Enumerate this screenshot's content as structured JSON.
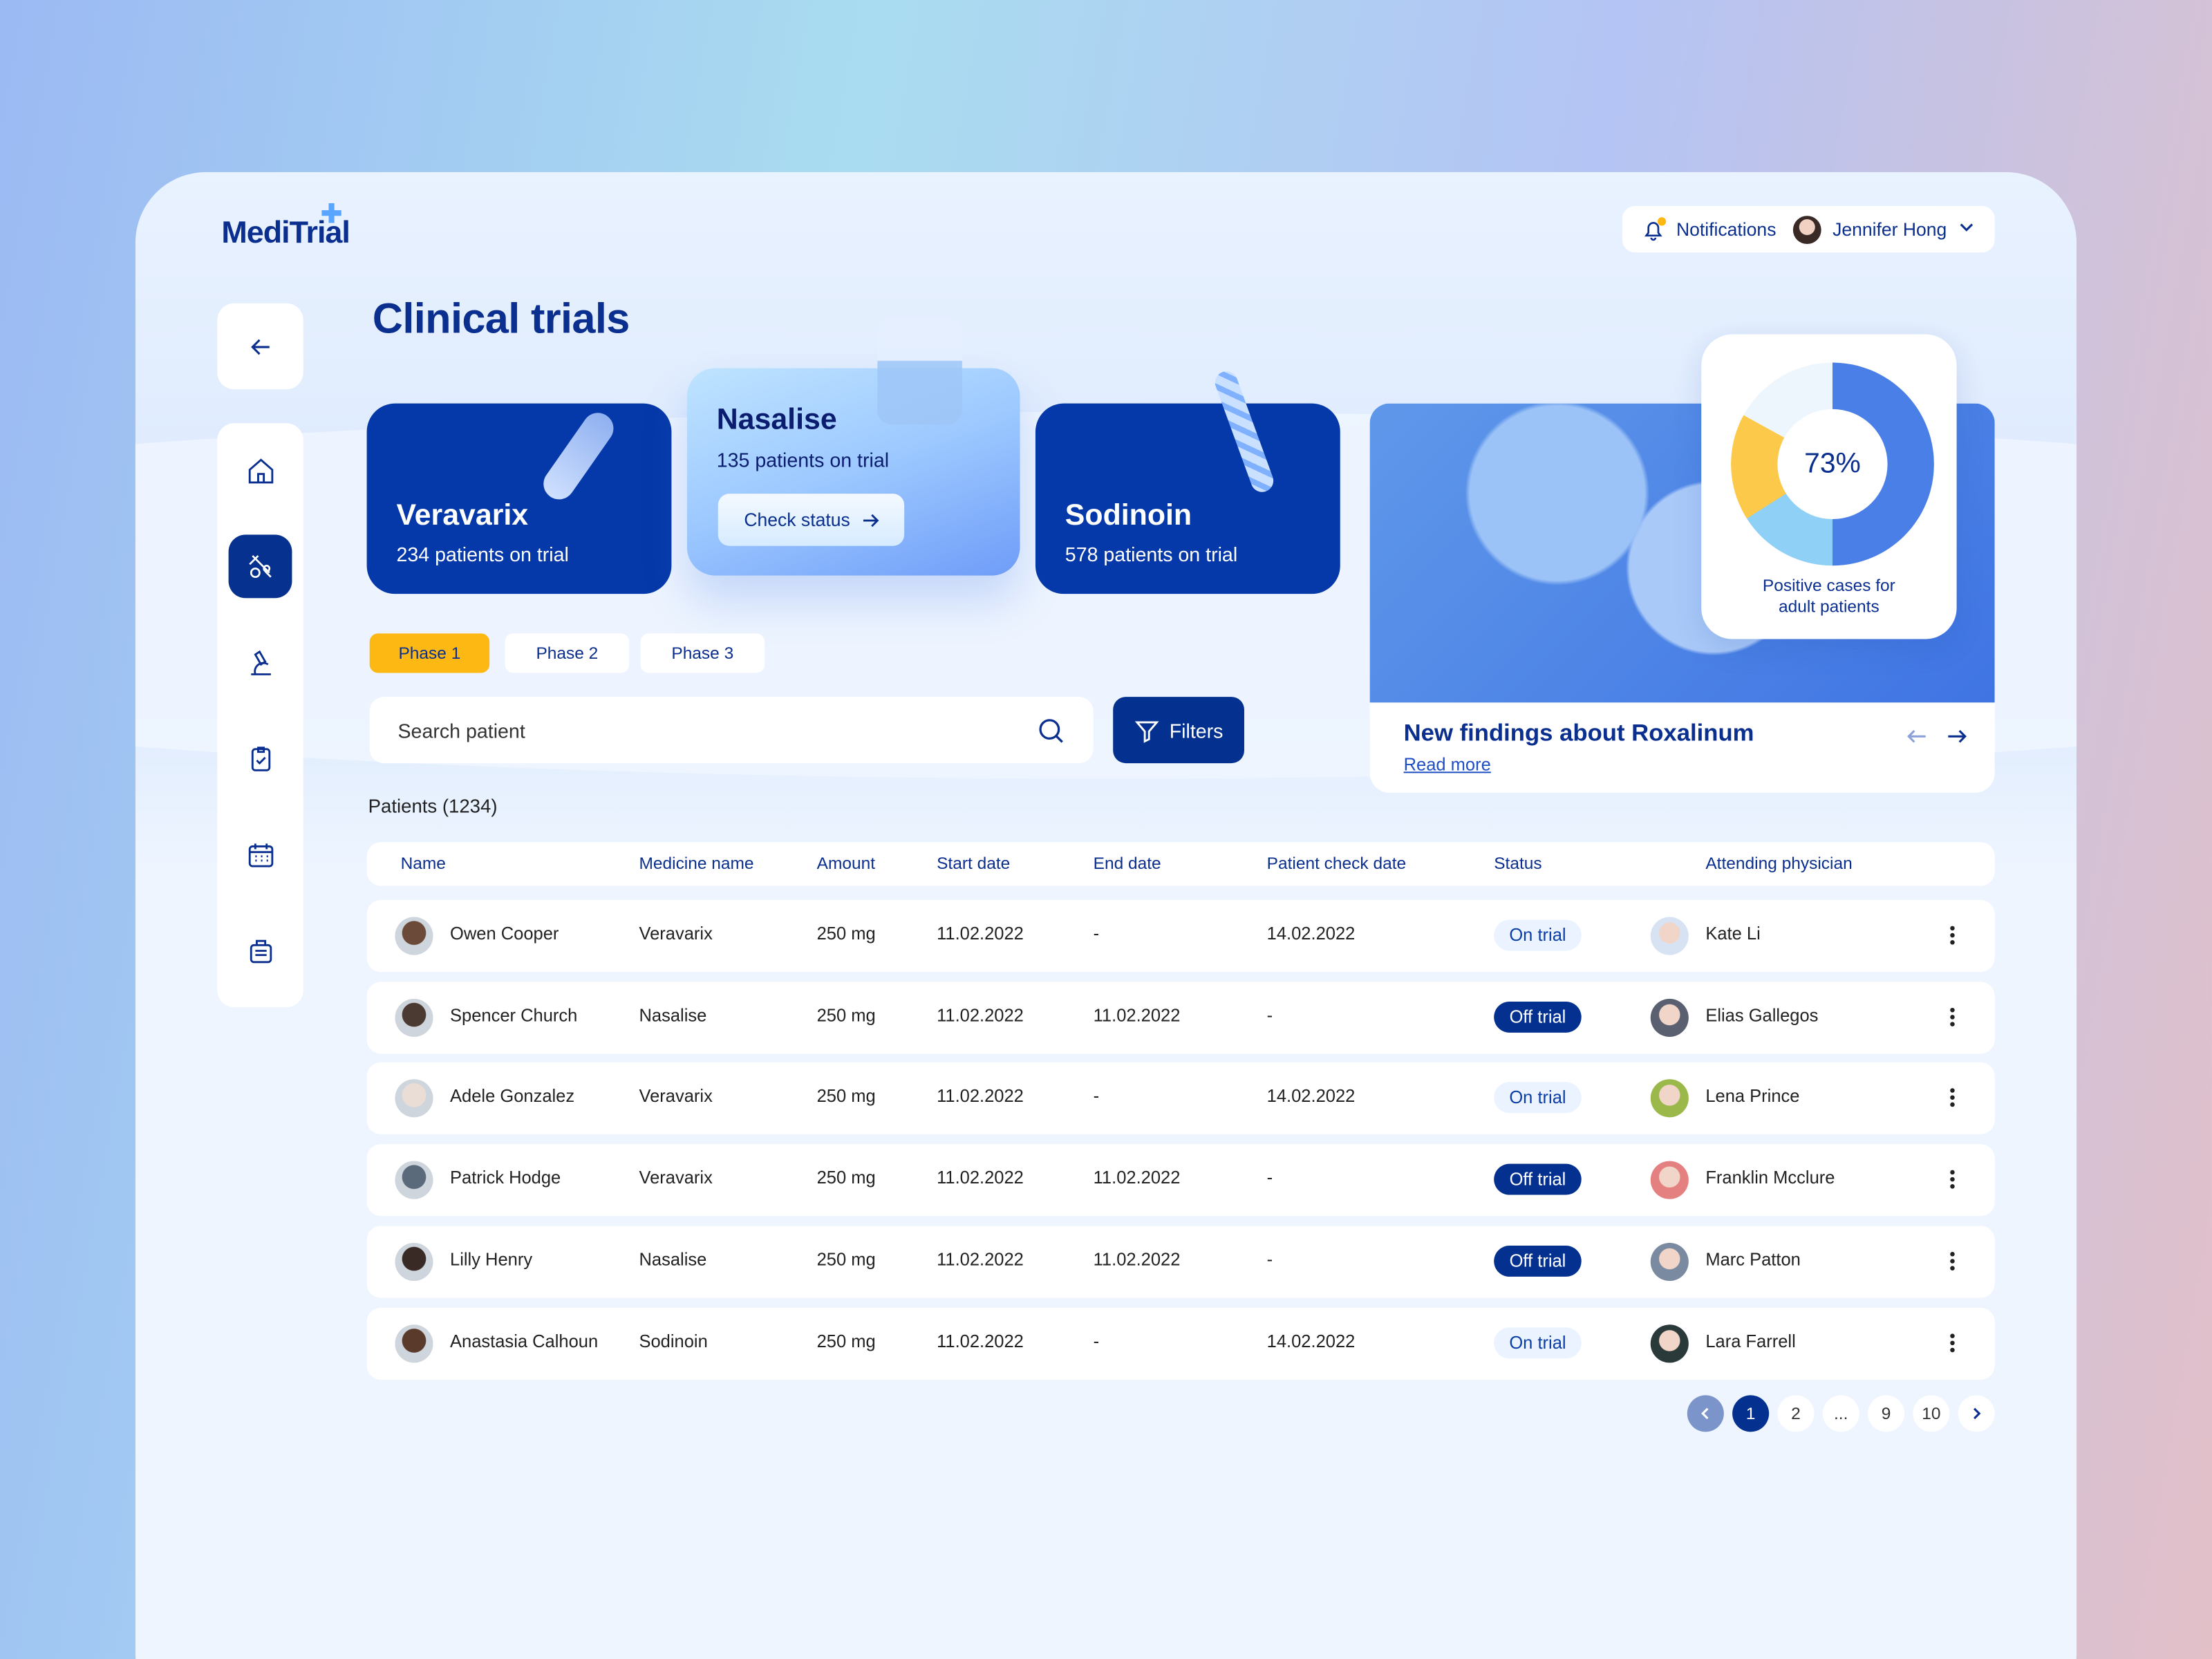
{
  "app": {
    "logo": "MediTrial"
  },
  "header": {
    "notifications_label": "Notifications",
    "user_name": "Jennifer Hong",
    "notification_dot_color": "#fdb813"
  },
  "sidebar": {
    "items": [
      {
        "icon": "home-icon"
      },
      {
        "icon": "clinical-trials-icon",
        "active": true
      },
      {
        "icon": "microscope-icon"
      },
      {
        "icon": "clipboard-check-icon"
      },
      {
        "icon": "calendar-icon"
      },
      {
        "icon": "archive-icon"
      }
    ]
  },
  "page": {
    "title": "Clinical trials"
  },
  "drugs": [
    {
      "name": "Veravarix",
      "patients": "234 patients on trial"
    },
    {
      "name": "Nasalise",
      "patients": "135 patients on trial",
      "action": "Check status"
    },
    {
      "name": "Sodinoin",
      "patients": "578 patients on trial"
    }
  ],
  "phases": {
    "tabs": [
      "Phase 1",
      "Phase 2",
      "Phase 3"
    ],
    "active": 0
  },
  "search": {
    "placeholder": "Search patient"
  },
  "filters_label": "Filters",
  "news": {
    "title": "New findings about Roxalinum",
    "link": "Read more"
  },
  "stat": {
    "value": "73%",
    "caption": "Positive cases for adult patients",
    "segments": [
      {
        "color": "#4a7fe8",
        "percent": 50
      },
      {
        "color": "#8fd0f7",
        "percent": 16
      },
      {
        "color": "#fcc94a",
        "percent": 17
      },
      {
        "color": "#eef6fd",
        "percent": 17
      }
    ]
  },
  "patients": {
    "heading": "Patients (1234)",
    "columns": [
      "Name",
      "Medicine name",
      "Amount",
      "Start date",
      "End date",
      "Patient check date",
      "Status",
      "Attending physician"
    ],
    "rows": [
      [
        "Owen Cooper",
        "Veravarix",
        "250 mg",
        "11.02.2022",
        "-",
        "14.02.2022",
        "On trial",
        "Kate Li"
      ],
      [
        "Spencer Church",
        "Nasalise",
        "250 mg",
        "11.02.2022",
        "11.02.2022",
        "-",
        "Off trial",
        "Elias Gallegos"
      ],
      [
        "Adele Gonzalez",
        "Veravarix",
        "250 mg",
        "11.02.2022",
        "-",
        "14.02.2022",
        "On trial",
        "Lena Prince"
      ],
      [
        "Patrick Hodge",
        "Veravarix",
        "250 mg",
        "11.02.2022",
        "11.02.2022",
        "-",
        "Off trial",
        "Franklin Mcclure"
      ],
      [
        "Lilly Henry",
        "Nasalise",
        "250 mg",
        "11.02.2022",
        "11.02.2022",
        "-",
        "Off trial",
        "Marc Patton"
      ],
      [
        "Anastasia Calhoun",
        "Sodinoin",
        "250 mg",
        "11.02.2022",
        "-",
        "14.02.2022",
        "On trial",
        "Lara Farrell"
      ]
    ]
  },
  "pagination": {
    "pages": [
      "1",
      "2",
      "...",
      "9",
      "10"
    ],
    "current": "1"
  },
  "colors": {
    "primary": "#04318f",
    "accent": "#fdb813",
    "background": "#eef5ff"
  }
}
